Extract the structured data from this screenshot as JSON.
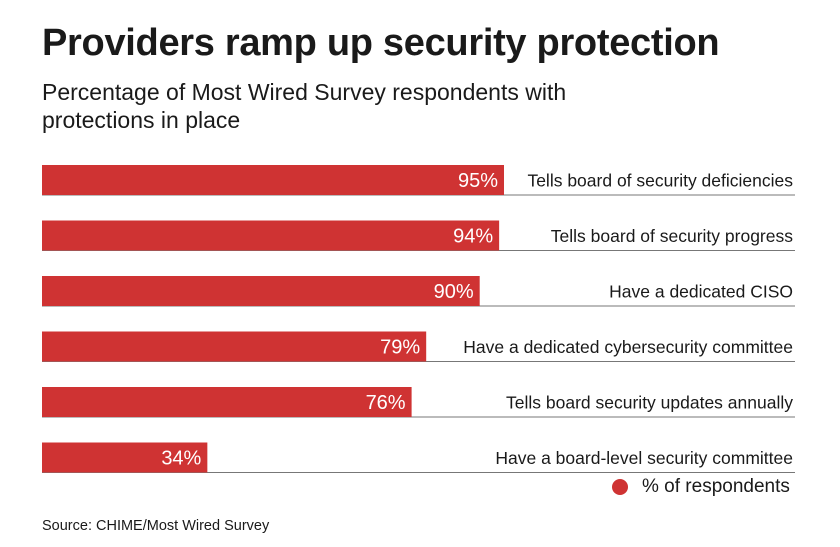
{
  "chart_data": {
    "type": "bar",
    "orientation": "horizontal",
    "title": "Providers ramp up security protection",
    "subtitle": "Percentage of Most Wired Survey respondents with protections in place",
    "categories": [
      "Tells board of security deficiencies",
      "Tells board of security progress",
      "Have a dedicated CISO",
      "Have a dedicated cybersecurity committee",
      "Tells board security updates annually",
      "Have a board-level security committee"
    ],
    "values": [
      95,
      94,
      90,
      79,
      76,
      34
    ],
    "value_labels": [
      "95%",
      "94%",
      "90%",
      "79%",
      "76%",
      "34%"
    ],
    "xlim": [
      0,
      100
    ],
    "legend": "% of respondents",
    "legend_position": "bottom-right",
    "source": "Source: CHIME/Most Wired Survey",
    "grid": false
  },
  "colors": {
    "bar": "#cf3333",
    "divider": "#777777",
    "label_on_bar": "#ffffff",
    "text": "#1a1a1a"
  }
}
